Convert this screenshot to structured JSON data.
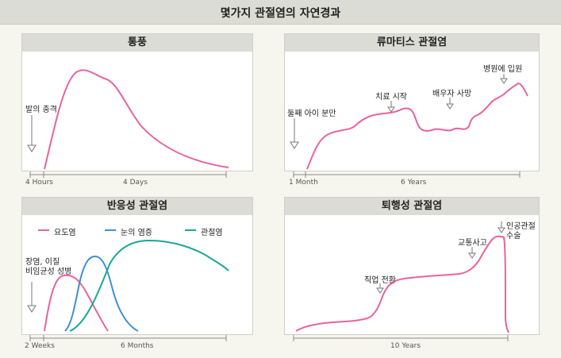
{
  "page": {
    "title": "몇가지 관절염의 자연경과"
  },
  "colors": {
    "pink": "#e8639e",
    "blue": "#3f8fd0",
    "teal": "#17a89a",
    "axis": "#8a8a8a"
  },
  "chart_data": [
    {
      "type": "line",
      "title": "통풍",
      "series": [
        {
          "name": "",
          "color": "#e8639e"
        }
      ],
      "annotations": [
        "발의 충격"
      ],
      "x_tick_labels": [
        "4 Hours",
        "4 Days"
      ]
    },
    {
      "type": "line",
      "title": "류마티스 관절염",
      "series": [
        {
          "name": "",
          "color": "#e8639e"
        }
      ],
      "annotations": [
        "둘째 아이 분만",
        "치료 시작",
        "배우자 사망",
        "병원에 입원"
      ],
      "x_tick_labels": [
        "1 Month",
        "6 Years"
      ]
    },
    {
      "type": "line",
      "title": "반응성 관절염",
      "series": [
        {
          "name": "요도염",
          "color": "#e8639e"
        },
        {
          "name": "눈의 염증",
          "color": "#3f8fd0"
        },
        {
          "name": "관절염",
          "color": "#17a89a"
        }
      ],
      "annotations": [
        "장염, 이질",
        "비임균성 성병"
      ],
      "x_tick_labels": [
        "2 Weeks",
        "6 Months"
      ]
    },
    {
      "type": "line",
      "title": "퇴행성 관절염",
      "series": [
        {
          "name": "",
          "color": "#e8639e"
        }
      ],
      "annotations": [
        "직업 전환",
        "교통사고",
        "인공관절",
        "수술"
      ],
      "x_tick_labels": [
        "10 Years"
      ]
    }
  ]
}
